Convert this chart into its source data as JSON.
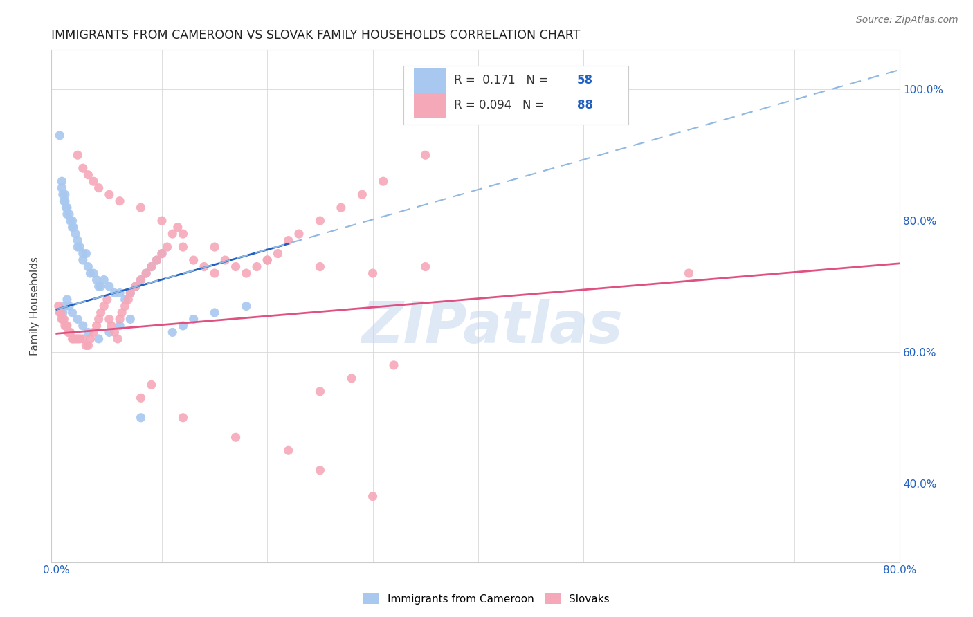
{
  "title": "IMMIGRANTS FROM CAMEROON VS SLOVAK FAMILY HOUSEHOLDS CORRELATION CHART",
  "source": "Source: ZipAtlas.com",
  "ylabel": "Family Households",
  "blue_color": "#A8C8F0",
  "pink_color": "#F5A8B8",
  "blue_line_color": "#2060C0",
  "pink_line_color": "#E05080",
  "dashed_line_color": "#90B8E0",
  "watermark_text": "ZIPatlas",
  "xmin": 0.0,
  "xmax": 0.8,
  "ymin": 0.28,
  "ymax": 1.06,
  "blue_line_x": [
    0.0,
    0.22
  ],
  "blue_line_y": [
    0.665,
    0.765
  ],
  "pink_line_x": [
    0.0,
    0.8
  ],
  "pink_line_y": [
    0.628,
    0.735
  ],
  "dash_line_x": [
    0.0,
    0.8
  ],
  "dash_line_y": [
    0.665,
    1.03
  ],
  "blue_x": [
    0.003,
    0.005,
    0.005,
    0.006,
    0.007,
    0.008,
    0.008,
    0.009,
    0.01,
    0.01,
    0.012,
    0.013,
    0.015,
    0.015,
    0.016,
    0.018,
    0.02,
    0.02,
    0.022,
    0.025,
    0.025,
    0.028,
    0.03,
    0.032,
    0.035,
    0.038,
    0.04,
    0.042,
    0.045,
    0.05,
    0.055,
    0.06,
    0.065,
    0.07,
    0.075,
    0.08,
    0.085,
    0.09,
    0.095,
    0.1,
    0.11,
    0.12,
    0.13,
    0.15,
    0.18,
    0.006,
    0.008,
    0.01,
    0.012,
    0.015,
    0.02,
    0.025,
    0.03,
    0.04,
    0.05,
    0.06,
    0.07,
    0.08
  ],
  "blue_y": [
    0.93,
    0.86,
    0.85,
    0.84,
    0.83,
    0.84,
    0.83,
    0.82,
    0.82,
    0.81,
    0.81,
    0.8,
    0.79,
    0.8,
    0.79,
    0.78,
    0.77,
    0.76,
    0.76,
    0.75,
    0.74,
    0.75,
    0.73,
    0.72,
    0.72,
    0.71,
    0.7,
    0.7,
    0.71,
    0.7,
    0.69,
    0.69,
    0.68,
    0.69,
    0.7,
    0.71,
    0.72,
    0.73,
    0.74,
    0.75,
    0.63,
    0.64,
    0.65,
    0.66,
    0.67,
    0.66,
    0.67,
    0.68,
    0.67,
    0.66,
    0.65,
    0.64,
    0.63,
    0.62,
    0.63,
    0.64,
    0.65,
    0.5
  ],
  "pink_x": [
    0.002,
    0.003,
    0.004,
    0.005,
    0.006,
    0.007,
    0.008,
    0.009,
    0.01,
    0.011,
    0.012,
    0.013,
    0.015,
    0.016,
    0.018,
    0.02,
    0.022,
    0.025,
    0.028,
    0.03,
    0.032,
    0.035,
    0.038,
    0.04,
    0.042,
    0.045,
    0.048,
    0.05,
    0.052,
    0.055,
    0.058,
    0.06,
    0.062,
    0.065,
    0.068,
    0.07,
    0.075,
    0.08,
    0.085,
    0.09,
    0.095,
    0.1,
    0.105,
    0.11,
    0.115,
    0.12,
    0.13,
    0.14,
    0.15,
    0.16,
    0.17,
    0.18,
    0.19,
    0.2,
    0.21,
    0.22,
    0.23,
    0.25,
    0.27,
    0.29,
    0.31,
    0.35,
    0.02,
    0.025,
    0.03,
    0.035,
    0.04,
    0.05,
    0.06,
    0.08,
    0.1,
    0.12,
    0.15,
    0.2,
    0.25,
    0.3,
    0.35,
    0.32,
    0.28,
    0.25,
    0.6,
    0.25,
    0.3,
    0.12,
    0.17,
    0.22,
    0.08,
    0.09
  ],
  "pink_y": [
    0.67,
    0.66,
    0.66,
    0.65,
    0.65,
    0.65,
    0.64,
    0.64,
    0.64,
    0.63,
    0.63,
    0.63,
    0.62,
    0.62,
    0.62,
    0.62,
    0.62,
    0.62,
    0.61,
    0.61,
    0.62,
    0.63,
    0.64,
    0.65,
    0.66,
    0.67,
    0.68,
    0.65,
    0.64,
    0.63,
    0.62,
    0.65,
    0.66,
    0.67,
    0.68,
    0.69,
    0.7,
    0.71,
    0.72,
    0.73,
    0.74,
    0.75,
    0.76,
    0.78,
    0.79,
    0.76,
    0.74,
    0.73,
    0.72,
    0.74,
    0.73,
    0.72,
    0.73,
    0.74,
    0.75,
    0.77,
    0.78,
    0.8,
    0.82,
    0.84,
    0.86,
    0.9,
    0.9,
    0.88,
    0.87,
    0.86,
    0.85,
    0.84,
    0.83,
    0.82,
    0.8,
    0.78,
    0.76,
    0.74,
    0.73,
    0.72,
    0.73,
    0.58,
    0.56,
    0.54,
    0.72,
    0.42,
    0.38,
    0.5,
    0.47,
    0.45,
    0.53,
    0.55
  ],
  "right_yticks": [
    0.4,
    0.6,
    0.8,
    1.0
  ],
  "right_yticklabels": [
    "40.0%",
    "60.0%",
    "80.0%",
    "100.0%"
  ],
  "xticks": [
    0.0,
    0.1,
    0.2,
    0.3,
    0.4,
    0.5,
    0.6,
    0.7,
    0.8
  ],
  "legend_text_color": "#2060C0",
  "legend_label_color": "#333333"
}
